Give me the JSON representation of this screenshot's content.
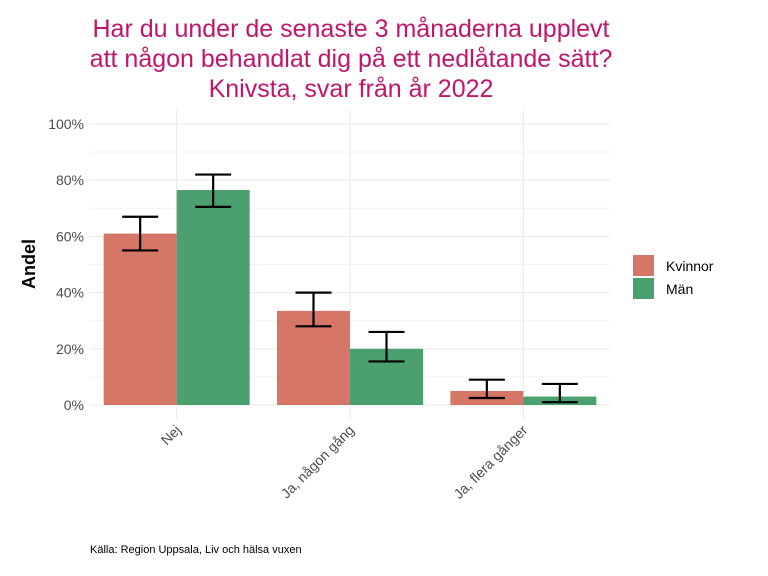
{
  "chart_data": {
    "type": "bar",
    "title_lines": [
      "Har du under de senaste 3 månaderna upplevt",
      "att någon behandlat dig på ett nedlåtande sätt?",
      "Knivsta, svar från år 2022"
    ],
    "xlabel": "",
    "ylabel": "Andel",
    "categories": [
      "Nej",
      "Ja, någon gång",
      "Ja, flera gånger"
    ],
    "series": [
      {
        "name": "Kvinnor",
        "color": "#d57667",
        "values": [
          61,
          33.5,
          5
        ],
        "err_low": [
          55,
          28,
          2.5
        ],
        "err_high": [
          67,
          40,
          9
        ]
      },
      {
        "name": "Män",
        "color": "#4aa16f",
        "values": [
          76.5,
          20,
          3
        ],
        "err_low": [
          70.5,
          15.5,
          1
        ],
        "err_high": [
          82,
          26,
          7.5
        ]
      }
    ],
    "ylim": [
      0,
      100
    ],
    "yticks": [
      0,
      20,
      40,
      60,
      80,
      100
    ],
    "ytick_labels": [
      "0%",
      "20%",
      "40%",
      "60%",
      "80%",
      "100%"
    ],
    "grid": true,
    "legend_position": "right",
    "caption": "Källa: Region Uppsala, Liv och hälsa vuxen"
  }
}
